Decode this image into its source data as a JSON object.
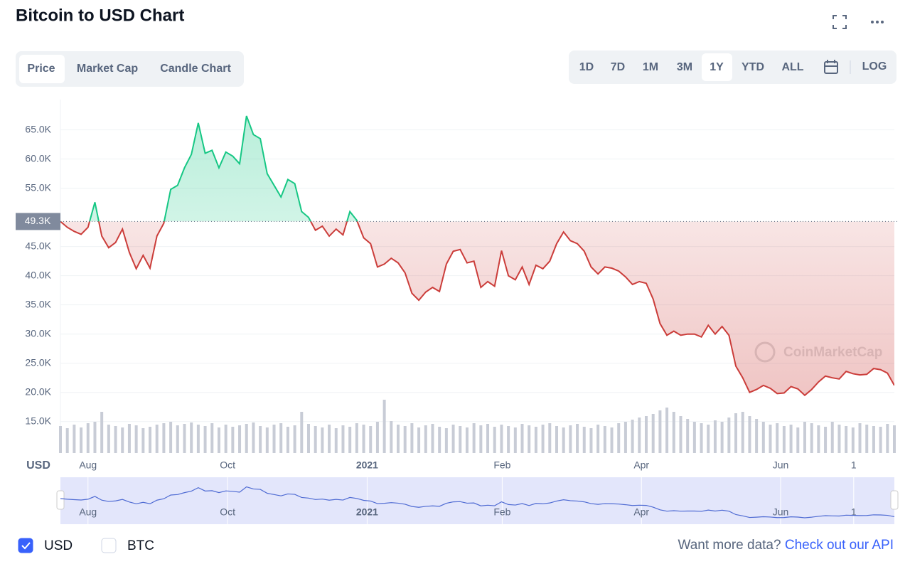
{
  "header": {
    "title": "Bitcoin to USD Chart"
  },
  "tabs": [
    "Price",
    "Market Cap",
    "Candle Chart"
  ],
  "ranges": [
    "1D",
    "7D",
    "1M",
    "3M",
    "1Y",
    "YTD",
    "ALL"
  ],
  "log": "LOG",
  "currencies": [
    {
      "label": "USD",
      "checked": true
    },
    {
      "label": "BTC",
      "checked": false
    }
  ],
  "footer": {
    "text": "Want more data?",
    "link": "Check out our API"
  },
  "chart_data": {
    "type": "line",
    "y_axis_label": "USD",
    "watermark": "CoinMarketCap",
    "reference": {
      "value": 49300,
      "label": "49.3K"
    },
    "up_color": "#16c784",
    "down_color": "#cb3d3a",
    "xlim": [
      0,
      121
    ],
    "xticks": [
      {
        "value": 4,
        "label": "Aug"
      },
      {
        "value": 24.25,
        "label": "Oct"
      },
      {
        "value": 44.5,
        "label": "2021"
      },
      {
        "value": 64.1,
        "label": "Feb"
      },
      {
        "value": 84.3,
        "label": "Apr"
      },
      {
        "value": 104.5,
        "label": "Jun"
      },
      {
        "value": 115.1,
        "label": "1"
      }
    ],
    "ylim": [
      9600,
      70200
    ],
    "yticks": [
      {
        "value": 15000,
        "label": "15.0K"
      },
      {
        "value": 20000,
        "label": "20.0K"
      },
      {
        "value": 25000,
        "label": "25.0K"
      },
      {
        "value": 30000,
        "label": "30.0K"
      },
      {
        "value": 35000,
        "label": "35.0K"
      },
      {
        "value": 40000,
        "label": "40.0K"
      },
      {
        "value": 45000,
        "label": "45.0K"
      },
      {
        "value": 55000,
        "label": "55.0K"
      },
      {
        "value": 60000,
        "label": "60.0K"
      },
      {
        "value": 65000,
        "label": "65.0K"
      }
    ],
    "grid": true,
    "series": [
      {
        "values": [
          49300,
          48300,
          47600,
          47100,
          48300,
          52600,
          46800,
          44800,
          45700,
          48000,
          44000,
          41200,
          43500,
          41300,
          46800,
          49000,
          54800,
          55500,
          58500,
          60800,
          66200,
          61000,
          61500,
          58500,
          61200,
          60500,
          59200,
          67400,
          64200,
          63500,
          57500,
          55500,
          53500,
          56500,
          55800,
          51000,
          50000,
          47800,
          48500,
          46800,
          48000,
          47000,
          51000,
          49500,
          46500,
          45500,
          41500,
          42000,
          43000,
          42200,
          40500,
          37000,
          35800,
          37200,
          38000,
          37300,
          42000,
          44200,
          44500,
          42200,
          42500,
          38000,
          39000,
          38200,
          44300,
          40000,
          39300,
          41500,
          38500,
          41800,
          41200,
          42500,
          45500,
          47500,
          46000,
          45500,
          44200,
          41500,
          40300,
          41500,
          41300,
          40800,
          39800,
          38500,
          39000,
          38700,
          36000,
          31800,
          29800,
          30500,
          29800,
          30000,
          30000,
          29500,
          31500,
          30000,
          31300,
          29800,
          24500,
          22500,
          20000,
          20500,
          21200,
          20700,
          19800,
          19900,
          21000,
          20600,
          19500,
          20500,
          21800,
          22800,
          22500,
          22300,
          23600,
          23200,
          23000,
          23100,
          24100,
          23900,
          23300,
          21200
        ]
      }
    ],
    "volume": {
      "color": "#c8ccd6",
      "y2lim": [
        0,
        100
      ],
      "values": [
        38,
        35,
        40,
        36,
        42,
        44,
        58,
        40,
        38,
        36,
        41,
        39,
        35,
        37,
        40,
        42,
        44,
        39,
        41,
        43,
        40,
        38,
        42,
        36,
        40,
        37,
        39,
        41,
        43,
        38,
        36,
        40,
        42,
        37,
        39,
        58,
        41,
        38,
        36,
        40,
        35,
        39,
        37,
        42,
        40,
        38,
        44,
        75,
        45,
        40,
        38,
        42,
        36,
        39,
        41,
        37,
        35,
        40,
        38,
        36,
        42,
        39,
        41,
        37,
        40,
        38,
        36,
        41,
        39,
        37,
        40,
        42,
        38,
        36,
        39,
        41,
        37,
        35,
        40,
        38,
        36,
        42,
        44,
        47,
        50,
        52,
        55,
        60,
        64,
        58,
        52,
        48,
        44,
        42,
        40,
        46,
        44,
        50,
        56,
        58,
        52,
        48,
        44,
        40,
        42,
        38,
        40,
        36,
        44,
        42,
        39,
        37,
        44,
        40,
        38,
        36,
        42,
        40,
        38,
        37,
        41,
        39
      ]
    },
    "navigator_color": "#4f6bd3"
  }
}
